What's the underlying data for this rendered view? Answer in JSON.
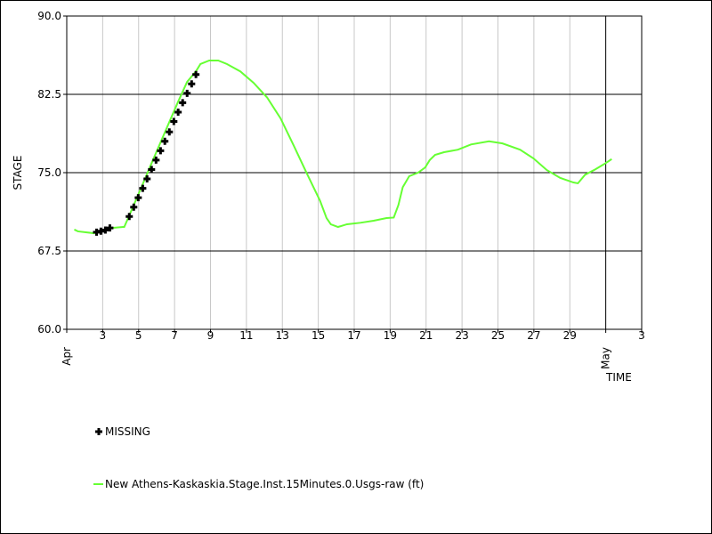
{
  "chart_data": {
    "type": "line",
    "xlabel": "TIME",
    "ylabel": "STAGE",
    "xlim": [
      0,
      32
    ],
    "ylim": [
      60,
      90
    ],
    "xticks": [
      {
        "value": 0,
        "label": "Apr"
      },
      {
        "value": 2,
        "label": "3"
      },
      {
        "value": 4,
        "label": "5"
      },
      {
        "value": 6,
        "label": "7"
      },
      {
        "value": 8,
        "label": "9"
      },
      {
        "value": 10,
        "label": "11"
      },
      {
        "value": 12,
        "label": "13"
      },
      {
        "value": 14,
        "label": "15"
      },
      {
        "value": 16,
        "label": "17"
      },
      {
        "value": 18,
        "label": "19"
      },
      {
        "value": 20,
        "label": "21"
      },
      {
        "value": 22,
        "label": "23"
      },
      {
        "value": 24,
        "label": "25"
      },
      {
        "value": 26,
        "label": "27"
      },
      {
        "value": 28,
        "label": "29"
      },
      {
        "value": 30,
        "label": "May"
      },
      {
        "value": 32,
        "label": "3"
      }
    ],
    "yticks": [
      {
        "value": 60,
        "label": "60.0"
      },
      67.5,
      {
        "value": 75,
        "label": "75.0"
      },
      82.5,
      {
        "value": 90,
        "label": "90.0"
      }
    ],
    "grid": true,
    "series": [
      {
        "name": "MISSING",
        "color": "#000000",
        "marker": "plus",
        "x": [
          1.66,
          1.9,
          2.15,
          2.4,
          3.48,
          3.73,
          3.98,
          4.23,
          4.47,
          4.72,
          4.97,
          5.22,
          5.46,
          5.71,
          5.96,
          6.2,
          6.45,
          6.7,
          6.95,
          7.19
        ],
        "values": [
          69.3,
          69.4,
          69.5,
          69.7,
          70.8,
          71.7,
          72.6,
          73.5,
          74.4,
          75.3,
          76.2,
          77.1,
          78.0,
          78.9,
          79.9,
          80.8,
          81.7,
          82.6,
          83.5,
          84.4
        ]
      },
      {
        "name": "New Athens-Kaskaskia.Stage.Inst.15Minutes.0.Usgs-raw (ft)",
        "color": "#66ff33",
        "marker": "line",
        "x": [
          0.42,
          0.62,
          1.01,
          1.51,
          2.0,
          2.5,
          3.14,
          3.2,
          3.48,
          3.73,
          4.23,
          4.72,
          5.22,
          5.71,
          6.2,
          6.7,
          7.19,
          7.44,
          7.93,
          8.43,
          8.92,
          9.66,
          10.4,
          11.15,
          11.9,
          12.63,
          13.37,
          14.1,
          14.46,
          14.7,
          15.1,
          15.6,
          16.34,
          17.08,
          17.8,
          18.2,
          18.46,
          18.7,
          19.06,
          19.55,
          19.95,
          20.2,
          20.5,
          21.0,
          21.77,
          22.5,
          23.5,
          24.25,
          25.23,
          25.98,
          26.72,
          27.46,
          28.2,
          28.45,
          28.85,
          29.35,
          29.94,
          30.33
        ],
        "values": [
          69.55,
          69.38,
          69.3,
          69.2,
          69.4,
          69.7,
          69.8,
          69.8,
          70.9,
          71.9,
          73.9,
          75.9,
          77.9,
          79.86,
          81.8,
          83.7,
          84.7,
          85.4,
          85.74,
          85.74,
          85.4,
          84.7,
          83.6,
          82.2,
          80.2,
          77.6,
          74.9,
          72.3,
          70.65,
          70.05,
          69.8,
          70.06,
          70.2,
          70.4,
          70.65,
          70.7,
          71.9,
          73.6,
          74.66,
          75.0,
          75.5,
          76.2,
          76.7,
          76.96,
          77.2,
          77.7,
          78.0,
          77.8,
          77.2,
          76.36,
          75.25,
          74.5,
          74.06,
          73.98,
          74.8,
          75.25,
          75.85,
          76.3
        ]
      }
    ]
  }
}
